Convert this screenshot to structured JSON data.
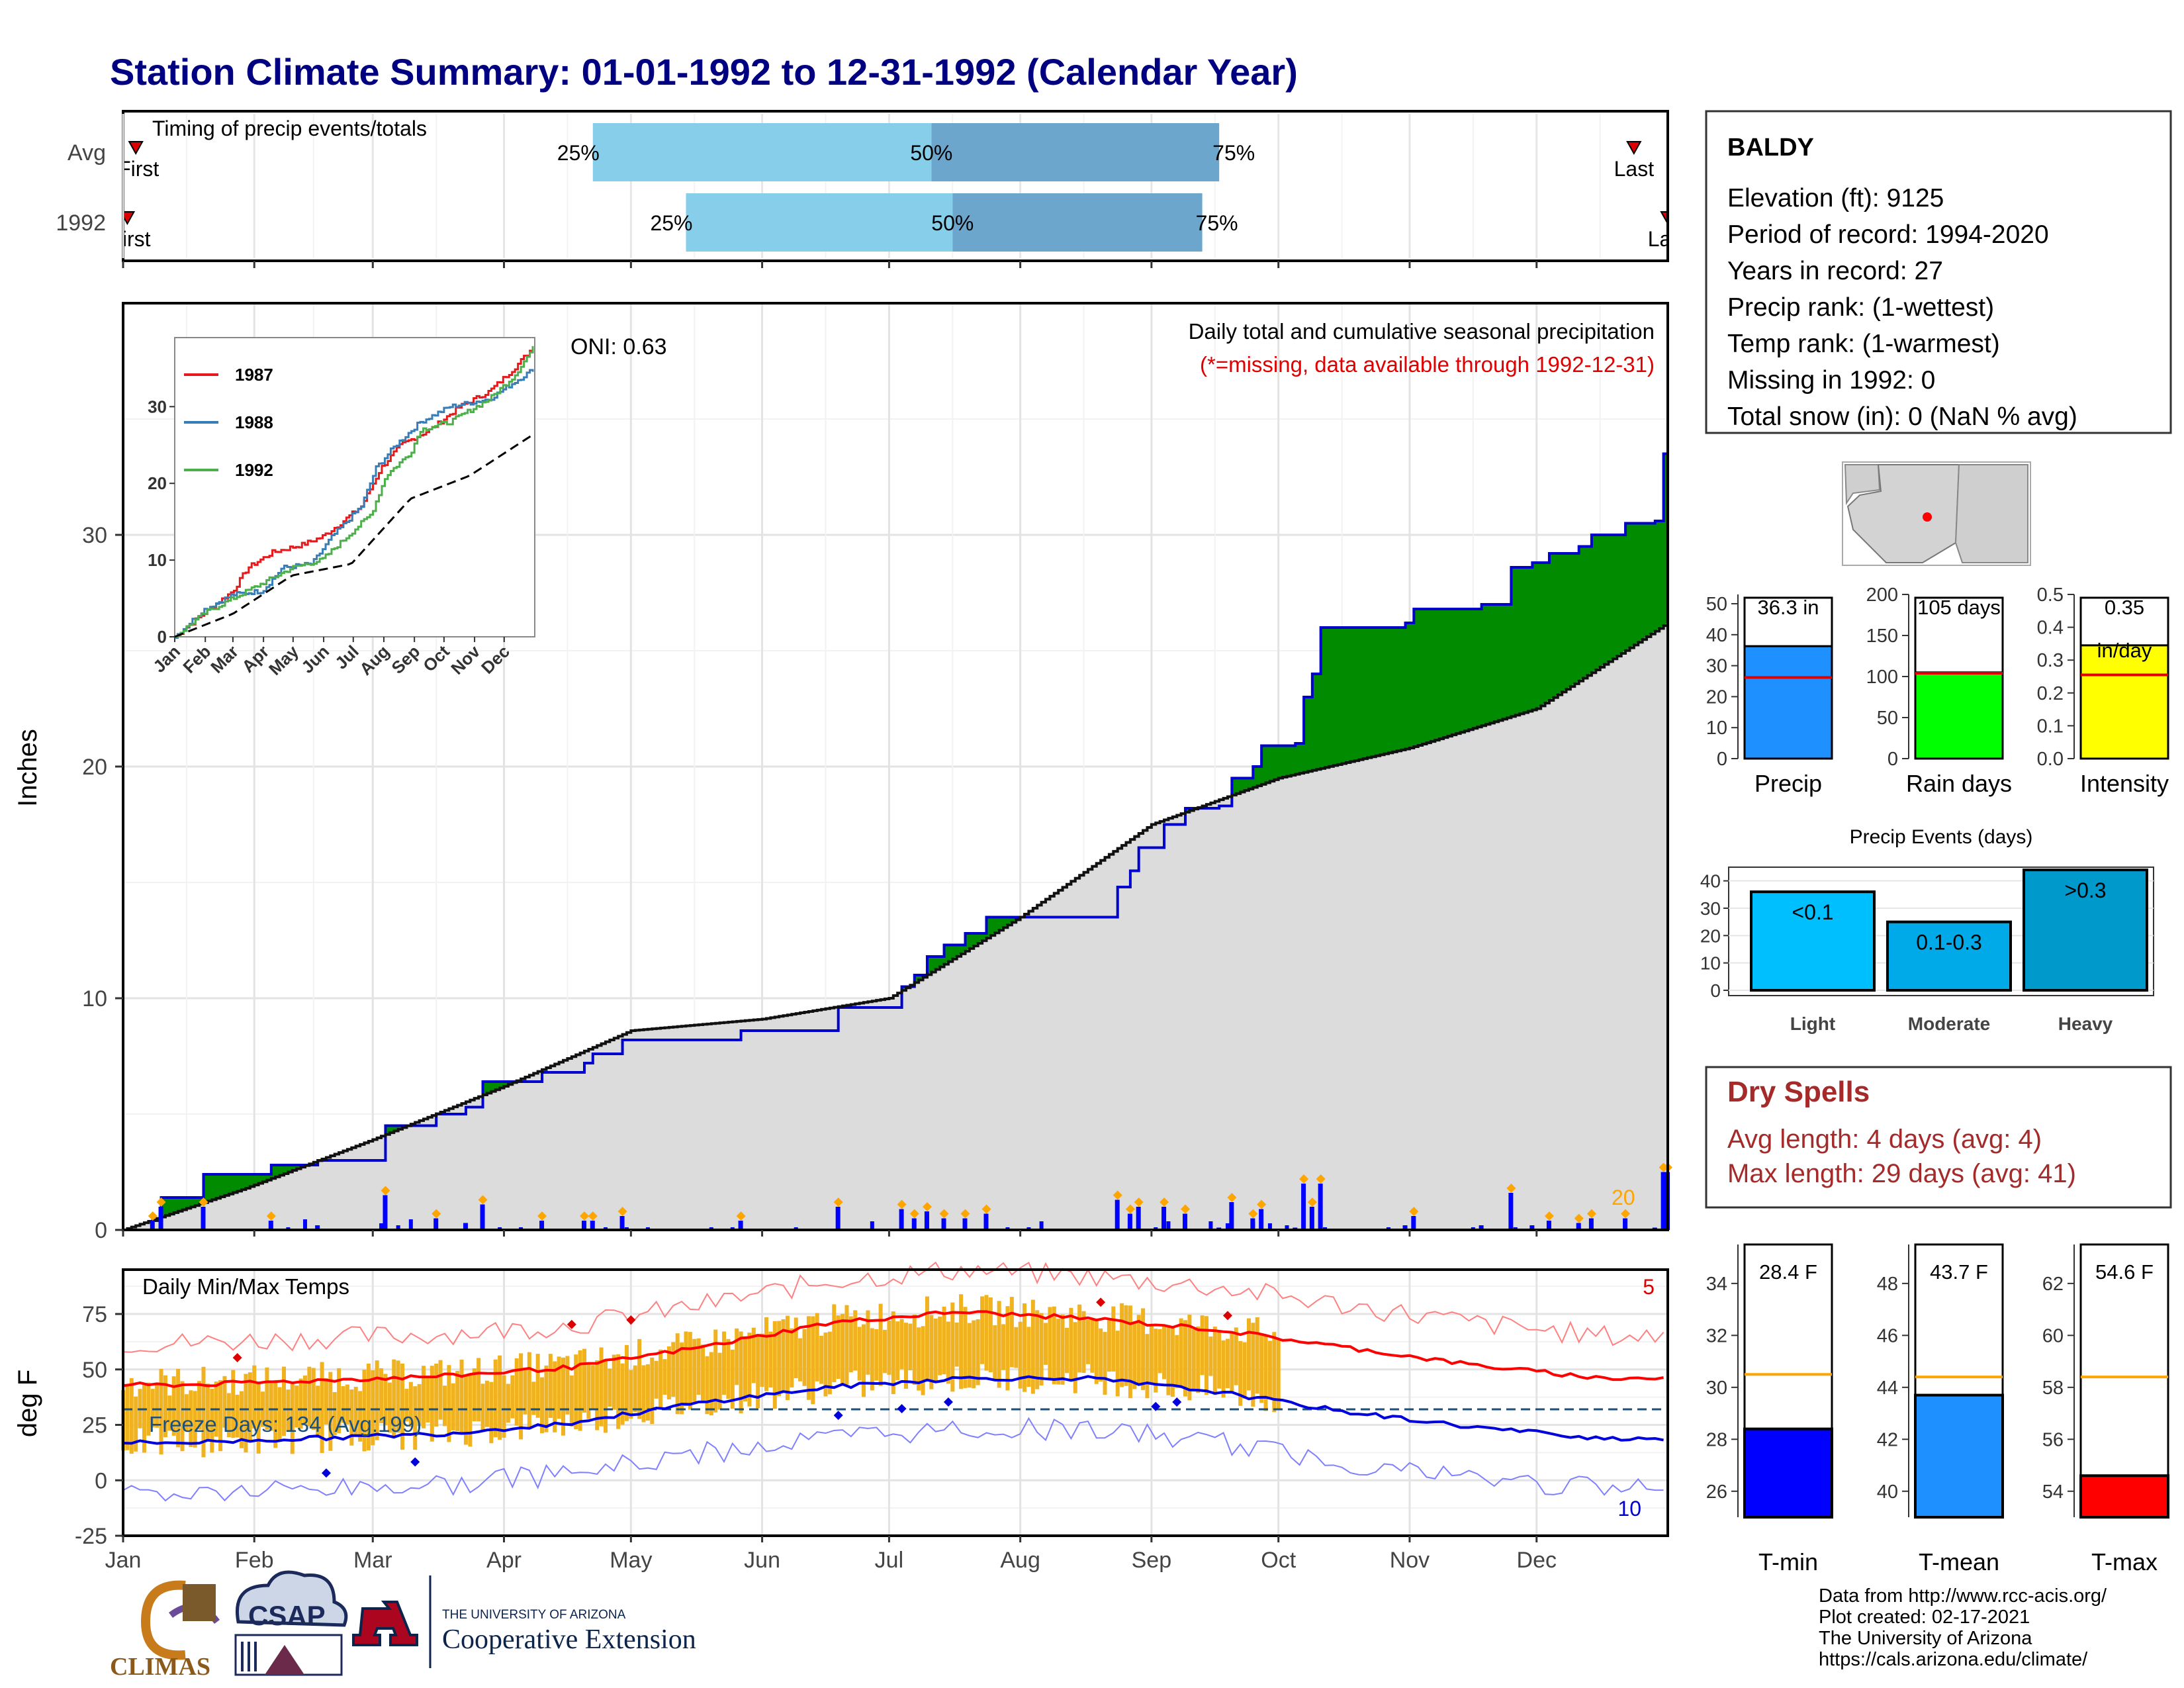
{
  "page": {
    "title": "Station Climate Summary: 01-01-1992 to 12-31-1992 (Calendar Year)"
  },
  "timing": {
    "label": "Timing of precip events/totals",
    "rows": [
      {
        "name": "Avg",
        "first": "First",
        "last": "Last",
        "p25": "25%",
        "p50": "50%",
        "p75": "75%",
        "first_doy": 4,
        "last_doy": 358,
        "p25_doy": 112,
        "p50_doy": 192,
        "p75_doy": 260
      },
      {
        "name": "1992",
        "first": "First",
        "last": "Last",
        "p25": "25%",
        "p50": "50%",
        "p75": "75%",
        "first_doy": 2,
        "last_doy": 366,
        "p25_doy": 134,
        "p50_doy": 197,
        "p75_doy": 256
      }
    ]
  },
  "main_chart": {
    "ylabel": "Inches",
    "oni": "ONI: 0.63",
    "caption": "Daily total and cumulative seasonal precipitation",
    "missing_note": "(*=missing, data available through 1992-12-31)",
    "count_label": "20",
    "yticks": [
      "0",
      "10",
      "20",
      "30"
    ]
  },
  "inset": {
    "yticks": [
      "0",
      "10",
      "20",
      "30"
    ],
    "months": [
      "Jan",
      "Feb",
      "Mar",
      "Apr",
      "May",
      "Jun",
      "Jul",
      "Aug",
      "Sep",
      "Oct",
      "Nov",
      "Dec"
    ],
    "legend": [
      "1987",
      "1988",
      "1992"
    ]
  },
  "temp_chart": {
    "ylabel": "deg F",
    "label": "Daily Min/Max Temps",
    "freeze": "Freeze Days: 134 (Avg:199)",
    "hot_count": "5",
    "cold_count": "10",
    "yticks": [
      "-25",
      "0",
      "25",
      "50",
      "75"
    ],
    "months": [
      "Jan",
      "Feb",
      "Mar",
      "Apr",
      "May",
      "Jun",
      "Jul",
      "Aug",
      "Sep",
      "Oct",
      "Nov",
      "Dec"
    ]
  },
  "station": {
    "name": "BALDY",
    "lines": [
      "Elevation (ft): 9125",
      "Period of record: 1994-2020",
      "Years in record: 27",
      "Precip rank:  (1-wettest)",
      "Temp rank:  (1-warmest)",
      "Missing in 1992: 0",
      "Total snow (in): 0 (NaN % avg)"
    ]
  },
  "mini_bars": [
    {
      "label": "Precip",
      "value_label": "36.3 in",
      "value": 36.3,
      "avg": 26.2,
      "max": 53,
      "ticks": [
        "0",
        "10",
        "20",
        "30",
        "40",
        "50"
      ],
      "color": "#1e90ff"
    },
    {
      "label": "Rain days",
      "value_label": "105 days",
      "value": 105,
      "avg": 104,
      "max": 200,
      "ticks": [
        "0",
        "50",
        "100",
        "150",
        "200"
      ],
      "color": "#00ff00"
    },
    {
      "label": "Intensity",
      "value_label": "0.35",
      "value_label2": "in/day",
      "value": 0.345,
      "avg": 0.255,
      "max": 0.5,
      "ticks": [
        "0.0",
        "0.1",
        "0.2",
        "0.3",
        "0.4",
        "0.5"
      ],
      "color": "#ffff00"
    }
  ],
  "events": {
    "title": "Precip Events (days)",
    "ticks": [
      "0",
      "10",
      "20",
      "30",
      "40"
    ],
    "bars": [
      {
        "cat": "Light",
        "label": "<0.1",
        "value": 36,
        "color": "#00bfff"
      },
      {
        "cat": "Moderate",
        "label": "0.1-0.3",
        "value": 25,
        "color": "#00a9e8"
      },
      {
        "cat": "Heavy",
        "label": ">0.3",
        "value": 44,
        "color": "#0099cc"
      }
    ]
  },
  "dry_spells": {
    "title": "Dry Spells",
    "avg": "Avg length: 4 days (avg: 4)",
    "max": "Max length: 29 days (avg: 41)"
  },
  "temp_bars": [
    {
      "label": "T-min",
      "value_label": "28.4 F",
      "value": 28.4,
      "avg": 30.5,
      "min": 25,
      "max": 35.5,
      "ticks": [
        "26",
        "28",
        "30",
        "32",
        "34"
      ],
      "color": "#0000ff"
    },
    {
      "label": "T-mean",
      "value_label": "43.7 F",
      "value": 43.7,
      "avg": 44.4,
      "min": 39,
      "max": 49.5,
      "ticks": [
        "40",
        "42",
        "44",
        "46",
        "48"
      ],
      "color": "#1e90ff"
    },
    {
      "label": "T-max",
      "value_label": "54.6 F",
      "value": 54.6,
      "avg": 58.4,
      "min": 53,
      "max": 63.5,
      "ticks": [
        "54",
        "56",
        "58",
        "60",
        "62"
      ],
      "color": "#ff0000"
    }
  ],
  "footer": {
    "lines": [
      "Data from http://www.rcc-acis.org/",
      "Plot created: 02-17-2021",
      "The University of Arizona",
      "https://cals.arizona.edu/climate/"
    ],
    "climas": "CLIMAS",
    "csap": "CSAP",
    "ua_small": "THE UNIVERSITY OF ARIZONA",
    "coop": "Cooperative Extension"
  },
  "chart_data": [
    {
      "type": "area",
      "title": "Daily total and cumulative seasonal precipitation",
      "ylabel": "Inches",
      "x": [
        "Jan",
        "Feb",
        "Mar",
        "Apr",
        "May",
        "Jun",
        "Jul",
        "Aug",
        "Sep",
        "Oct",
        "Nov",
        "Dec"
      ],
      "ylim": [
        0,
        40
      ],
      "series": [
        {
          "name": "1992",
          "points_doy_in": [
            [
              1,
              0
            ],
            [
              8,
              0.4
            ],
            [
              10,
              1.4
            ],
            [
              16,
              1.4
            ],
            [
              20,
              2.4
            ],
            [
              35,
              2.4
            ],
            [
              36,
              2.8
            ],
            [
              45,
              2.8
            ],
            [
              47,
              3.0
            ],
            [
              59,
              3.0
            ],
            [
              63,
              4.5
            ],
            [
              72,
              4.5
            ],
            [
              75,
              5.0
            ],
            [
              82,
              5.3
            ],
            [
              86,
              6.4
            ],
            [
              97,
              6.4
            ],
            [
              100,
              6.8
            ],
            [
              110,
              7.2
            ],
            [
              112,
              7.6
            ],
            [
              119,
              8.2
            ],
            [
              130,
              8.2
            ],
            [
              147,
              8.6
            ],
            [
              165,
              8.6
            ],
            [
              170,
              9.6
            ],
            [
              180,
              9.6
            ],
            [
              185,
              10.5
            ],
            [
              188,
              11.0
            ],
            [
              191,
              11.8
            ],
            [
              195,
              12.3
            ],
            [
              200,
              12.8
            ],
            [
              205,
              13.5
            ],
            [
              232,
              13.5
            ],
            [
              236,
              14.8
            ],
            [
              239,
              15.5
            ],
            [
              241,
              16.5
            ],
            [
              247,
              17.5
            ],
            [
              252,
              18.2
            ],
            [
              260,
              18.3
            ],
            [
              263,
              19.5
            ],
            [
              268,
              20.0
            ],
            [
              270,
              20.9
            ],
            [
              278,
              21.0
            ],
            [
              280,
              23.0
            ],
            [
              282,
              24.0
            ],
            [
              284,
              26.0
            ],
            [
              304,
              26.2
            ],
            [
              306,
              26.8
            ],
            [
              322,
              27.0
            ],
            [
              329,
              28.6
            ],
            [
              334,
              28.8
            ],
            [
              338,
              29.2
            ],
            [
              345,
              29.5
            ],
            [
              348,
              30.0
            ],
            [
              356,
              30.5
            ],
            [
              363,
              30.6
            ],
            [
              365,
              33.5
            ],
            [
              366,
              36.3
            ]
          ]
        },
        {
          "name": "Avg",
          "points_doy_in": [
            [
              1,
              0
            ],
            [
              30,
              1.8
            ],
            [
              60,
              3.9
            ],
            [
              91,
              6.2
            ],
            [
              121,
              8.6
            ],
            [
              152,
              9.1
            ],
            [
              182,
              10.0
            ],
            [
              213,
              13.5
            ],
            [
              244,
              17.5
            ],
            [
              274,
              19.5
            ],
            [
              305,
              20.8
            ],
            [
              335,
              22.5
            ],
            [
              366,
              26.2
            ]
          ]
        }
      ],
      "daily_max_in": 2.5
    },
    {
      "type": "line",
      "title": "Daily Min/Max Temps",
      "ylabel": "deg F",
      "ylim": [
        -25,
        95
      ],
      "freeze_line": 32,
      "series": [
        {
          "name": "Avg Tmax",
          "monthly": [
            43,
            45,
            47,
            51,
            60,
            71,
            76,
            73,
            68,
            60,
            52,
            46
          ]
        },
        {
          "name": "Avg Tmin",
          "monthly": [
            17,
            19,
            21,
            26,
            35,
            42,
            46,
            46,
            40,
            31,
            24,
            19
          ]
        }
      ]
    }
  ]
}
